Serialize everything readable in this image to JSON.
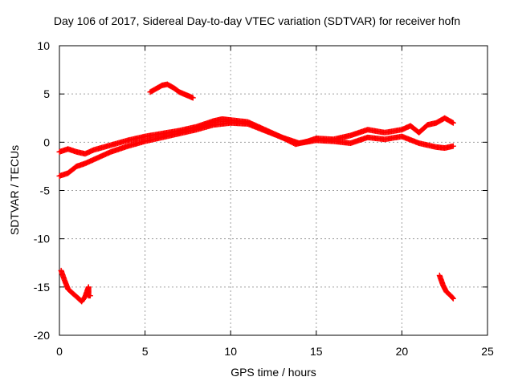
{
  "chart_data": {
    "type": "scatter",
    "title": "Day 106 of 2017, Sidereal Day-to-day VTEC variation (SDTVAR) for receiver hofn",
    "xlabel": "GPS time / hours",
    "ylabel": "SDTVAR / TECUs",
    "xlim": [
      0,
      25
    ],
    "ylim": [
      -20,
      10
    ],
    "xticks": [
      0,
      5,
      10,
      15,
      20,
      25
    ],
    "yticks": [
      -20,
      -15,
      -10,
      -5,
      0,
      5,
      10
    ],
    "grid": true,
    "marker": "+",
    "color": "#ff0000",
    "series": [
      {
        "name": "main band upper",
        "x": [
          0.0,
          0.5,
          1.0,
          1.5,
          2.0,
          3.0,
          4.0,
          5.0,
          6.0,
          7.0,
          8.0,
          9.0,
          9.5,
          10.0,
          11.0,
          12.0,
          13.0,
          13.8,
          14.5,
          15.0,
          16.0,
          17.0,
          18.0,
          19.0,
          20.0,
          20.5,
          21.0,
          21.5,
          22.0,
          22.5,
          23.0
        ],
        "y": [
          -1.0,
          -0.7,
          -1.0,
          -1.2,
          -0.8,
          -0.3,
          0.2,
          0.6,
          0.9,
          1.2,
          1.6,
          2.2,
          2.4,
          2.3,
          2.1,
          1.3,
          0.5,
          -0.2,
          0.1,
          0.4,
          0.3,
          0.7,
          1.3,
          1.0,
          1.3,
          1.7,
          1.0,
          1.8,
          2.0,
          2.5,
          2.0
        ]
      },
      {
        "name": "main band lower",
        "x": [
          0.0,
          0.5,
          1.0,
          1.5,
          2.0,
          3.0,
          4.0,
          5.0,
          6.0,
          7.0,
          8.0,
          9.0,
          10.0,
          11.0,
          12.0,
          13.0,
          14.0,
          15.0,
          16.0,
          17.0,
          18.0,
          19.0,
          20.0,
          21.0,
          22.0,
          22.5,
          23.0
        ],
        "y": [
          -3.5,
          -3.2,
          -2.5,
          -2.2,
          -1.8,
          -1.0,
          -0.4,
          0.1,
          0.5,
          0.9,
          1.3,
          1.8,
          2.0,
          1.9,
          1.2,
          0.5,
          -0.1,
          0.2,
          0.1,
          -0.1,
          0.5,
          0.3,
          0.6,
          -0.1,
          -0.5,
          -0.6,
          -0.4
        ]
      },
      {
        "name": "upper arc",
        "x": [
          5.3,
          5.6,
          6.0,
          6.3,
          6.7,
          7.0,
          7.4,
          7.8
        ],
        "y": [
          5.2,
          5.5,
          5.9,
          6.0,
          5.6,
          5.2,
          4.9,
          4.6
        ]
      },
      {
        "name": "lower left",
        "x": [
          0.1,
          0.3,
          0.5,
          0.8,
          1.0,
          1.3,
          1.5,
          1.7,
          1.7,
          1.8
        ],
        "y": [
          -13.3,
          -14.3,
          -15.2,
          -15.7,
          -16.0,
          -16.5,
          -16.0,
          -15.0,
          -15.9,
          -15.9
        ]
      },
      {
        "name": "lower right",
        "x": [
          22.2,
          22.4,
          22.6,
          22.8,
          23.0
        ],
        "y": [
          -13.8,
          -14.8,
          -15.5,
          -15.8,
          -16.2
        ]
      }
    ]
  }
}
